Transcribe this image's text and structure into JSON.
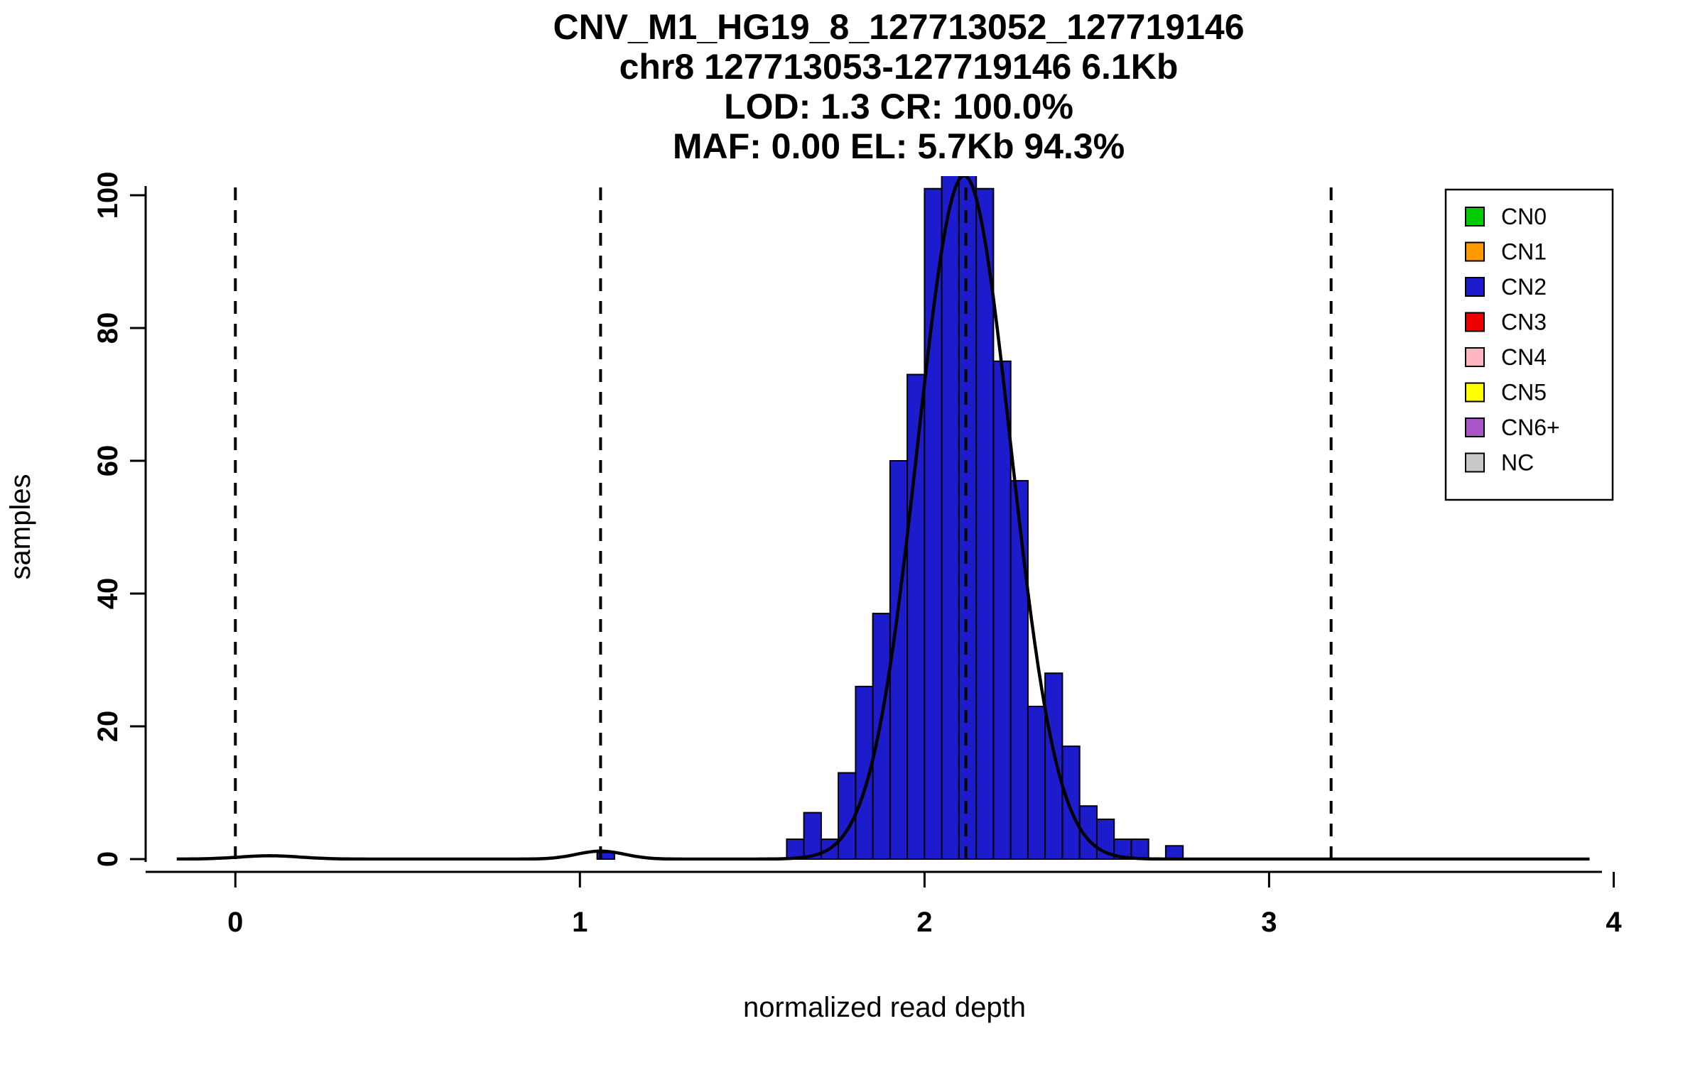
{
  "title": {
    "lines": [
      "CNV_M1_HG19_8_127713052_127719146",
      "chr8 127713053-127719146 6.1Kb",
      "LOD: 1.3 CR: 100.0%",
      "MAF: 0.00 EL: 5.7Kb 94.3%"
    ]
  },
  "chart_data": {
    "type": "bar",
    "subtype": "histogram",
    "title": "CNV_M1_HG19_8_127713052_127719146 | chr8 127713053-127719146 6.1Kb | LOD: 1.3 CR: 100.0% | MAF: 0.00 EL: 5.7Kb 94.3%",
    "xlabel": "normalized read depth",
    "ylabel": "samples",
    "xlim": [
      -0.25,
      4.1
    ],
    "ylim": [
      0,
      103
    ],
    "x_ticks": [
      0,
      1,
      2,
      3,
      4
    ],
    "y_ticks": [
      0,
      20,
      40,
      60,
      80,
      100
    ],
    "grid": false,
    "bar_color": "#1c1ccd",
    "bar_edge_color": "#000000",
    "bin_width": 0.05,
    "bins": [
      {
        "x": 1.05,
        "count": 1
      },
      {
        "x": 1.6,
        "count": 3
      },
      {
        "x": 1.65,
        "count": 7
      },
      {
        "x": 1.7,
        "count": 3
      },
      {
        "x": 1.75,
        "count": 13
      },
      {
        "x": 1.8,
        "count": 26
      },
      {
        "x": 1.85,
        "count": 37
      },
      {
        "x": 1.9,
        "count": 60
      },
      {
        "x": 1.95,
        "count": 73
      },
      {
        "x": 2.0,
        "count": 101
      },
      {
        "x": 2.05,
        "count": 103
      },
      {
        "x": 2.1,
        "count": 104
      },
      {
        "x": 2.15,
        "count": 101
      },
      {
        "x": 2.2,
        "count": 75
      },
      {
        "x": 2.25,
        "count": 57
      },
      {
        "x": 2.3,
        "count": 23
      },
      {
        "x": 2.35,
        "count": 28
      },
      {
        "x": 2.4,
        "count": 17
      },
      {
        "x": 2.45,
        "count": 8
      },
      {
        "x": 2.5,
        "count": 6
      },
      {
        "x": 2.55,
        "count": 3
      },
      {
        "x": 2.6,
        "count": 3
      },
      {
        "x": 2.7,
        "count": 2
      }
    ],
    "dashed_lines_x": [
      0,
      1.06,
      2.12,
      3.18
    ],
    "density_curve": {
      "color": "#000000",
      "x_range": [
        -0.17,
        3.93
      ],
      "components": [
        {
          "mean": 2.115,
          "sd": 0.135,
          "amplitude": 103
        },
        {
          "mean": 1.06,
          "sd": 0.07,
          "amplitude": 1.2
        },
        {
          "mean": 0.1,
          "sd": 0.09,
          "amplitude": 0.5
        }
      ]
    },
    "legend": {
      "position": "top-right",
      "items": [
        {
          "label": "CN0",
          "color": "#00cc00"
        },
        {
          "label": "CN1",
          "color": "#ff9900"
        },
        {
          "label": "CN2",
          "color": "#1c1ccd"
        },
        {
          "label": "CN3",
          "color": "#ee0000"
        },
        {
          "label": "CN4",
          "color": "#ffb6c1"
        },
        {
          "label": "CN5",
          "color": "#ffff00"
        },
        {
          "label": "CN6+",
          "color": "#a855c8"
        },
        {
          "label": "NC",
          "color": "#c8c8c8"
        }
      ]
    }
  }
}
